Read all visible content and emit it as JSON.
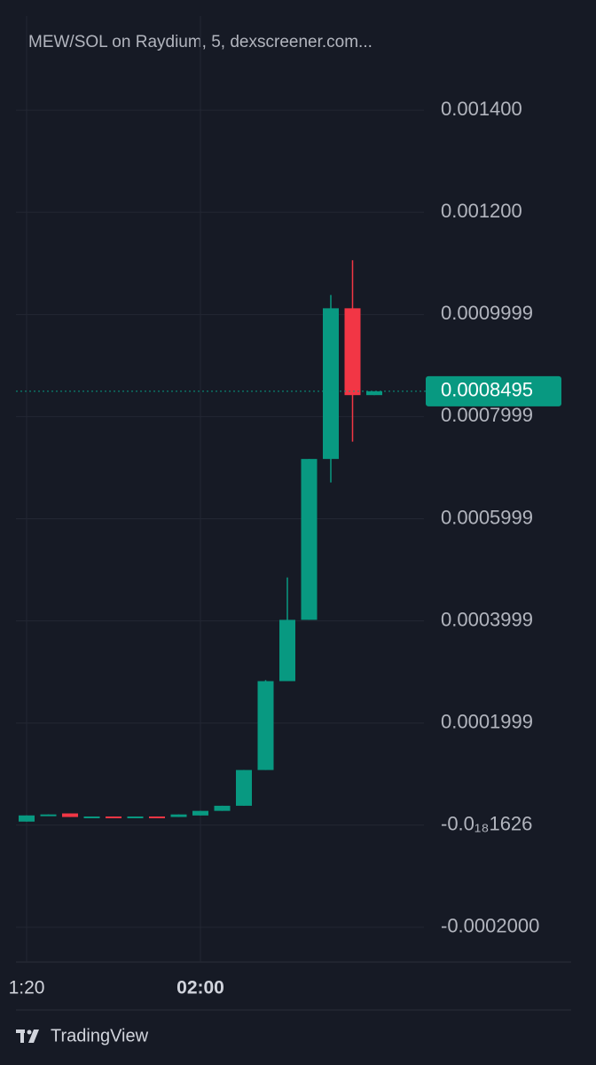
{
  "chart_data": {
    "type": "candlestick",
    "title": "MEW/SOL on Raydium, 5, dexscreener.com...",
    "categories": [
      "1:20",
      null,
      null,
      null,
      null,
      null,
      null,
      null,
      "02:00",
      null,
      null,
      null,
      null,
      null,
      null,
      null,
      null
    ],
    "open": [
      7e-06,
      1.9e-05,
      2.3e-05,
      1.6e-05,
      1.7e-05,
      1.6e-05,
      1.7e-05,
      1.6e-05,
      1.9e-05,
      2.8e-05,
      3.8e-05,
      0.000108,
      0.000282,
      0.000402,
      0.000717,
      0.001012,
      0.000842
    ],
    "high": [
      1.91e-05,
      2.1e-05,
      2.3e-05,
      1.7e-05,
      1.7e-05,
      1.7e-05,
      1.7e-05,
      2.1e-05,
      2.8e-05,
      3.8e-05,
      0.000108,
      0.000284,
      0.000485,
      0.000717,
      0.001038,
      0.001106,
      0.0008495
    ],
    "low": [
      7e-06,
      1.9e-05,
      1.6e-05,
      1.6e-05,
      1.6e-05,
      1.6e-05,
      1.6e-05,
      1.6e-05,
      1.9e-05,
      2.8e-05,
      3.8e-05,
      0.000108,
      0.000282,
      0.000402,
      0.000671,
      0.000751,
      0.000842
    ],
    "close": [
      1.91e-05,
      2.1e-05,
      1.6e-05,
      1.7e-05,
      1.6e-05,
      1.7e-05,
      1.6e-05,
      2.1e-05,
      2.8e-05,
      3.8e-05,
      0.000108,
      0.000282,
      0.000402,
      0.000717,
      0.001012,
      0.000842,
      0.0008495
    ],
    "up_color": "#089981",
    "down_color": "#f23645",
    "last_price": 0.0008495,
    "ylim": [
      -0.000268,
      0.0015843
    ],
    "yticks": [
      {
        "value": 0.0014,
        "label": "0.001400"
      },
      {
        "value": 0.0012,
        "label": "0.001200"
      },
      0.0009999,
      0.0007999,
      0.0005999,
      0.0003999,
      0.0001999,
      {
        "value": -1.626e-19,
        "label": "-0.0₁₈1626"
      },
      {
        "value": -0.0002,
        "label": "-0.0002000"
      }
    ],
    "grid": true
  },
  "footer": {
    "brand": "TradingView"
  }
}
